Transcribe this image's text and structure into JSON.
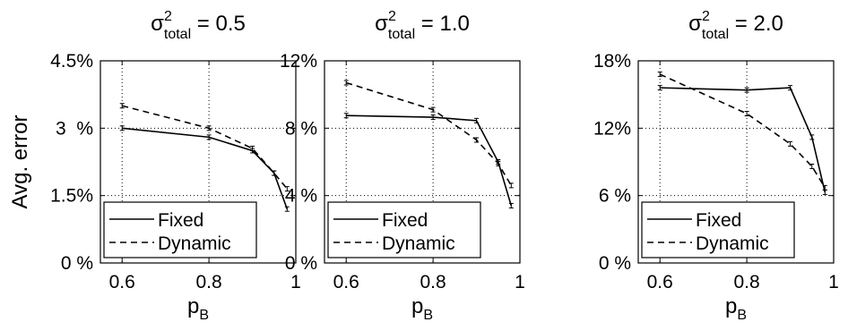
{
  "figure": {
    "ylabel": "Avg. error"
  },
  "chart_data": [
    {
      "type": "line",
      "title": {
        "sym": "σ",
        "sup": "2",
        "sub": "total",
        "rest": " = 0.5"
      },
      "xlabel": {
        "main": "p",
        "sub": "B"
      },
      "xlim": [
        0.55,
        1.0
      ],
      "ylim": [
        0,
        4.5
      ],
      "xticks": [
        {
          "v": 0.6,
          "label": "0.6"
        },
        {
          "v": 0.8,
          "label": "0.8"
        },
        {
          "v": 1.0,
          "label": "1"
        }
      ],
      "yticks": [
        {
          "v": 0,
          "label": "0 %"
        },
        {
          "v": 1.5,
          "label": "1.5%"
        },
        {
          "v": 3,
          "label": "3  %"
        },
        {
          "v": 4.5,
          "label": "4.5%"
        }
      ],
      "grid": true,
      "legend_position": "bottom-left",
      "series": [
        {
          "name": "Fixed",
          "style": "solid",
          "x": [
            0.6,
            0.8,
            0.9,
            0.95,
            0.98
          ],
          "y": [
            3.0,
            2.8,
            2.5,
            2.0,
            1.2
          ]
        },
        {
          "name": "Dynamic",
          "style": "dashed",
          "x": [
            0.6,
            0.8,
            0.9,
            0.95,
            0.98
          ],
          "y": [
            3.5,
            3.0,
            2.55,
            2.0,
            1.65
          ]
        }
      ]
    },
    {
      "type": "line",
      "title": {
        "sym": "σ",
        "sup": "2",
        "sub": "total",
        "rest": " = 1.0"
      },
      "xlabel": {
        "main": "p",
        "sub": "B"
      },
      "xlim": [
        0.55,
        1.0
      ],
      "ylim": [
        0,
        12
      ],
      "xticks": [
        {
          "v": 0.6,
          "label": "0.6"
        },
        {
          "v": 0.8,
          "label": "0.8"
        },
        {
          "v": 1.0,
          "label": "1"
        }
      ],
      "yticks": [
        {
          "v": 0,
          "label": "0 %"
        },
        {
          "v": 4,
          "label": "4 %"
        },
        {
          "v": 8,
          "label": "8 %"
        },
        {
          "v": 12,
          "label": "12%"
        }
      ],
      "grid": true,
      "legend_position": "bottom-left",
      "series": [
        {
          "name": "Fixed",
          "style": "solid",
          "x": [
            0.6,
            0.8,
            0.9,
            0.95,
            0.98
          ],
          "y": [
            8.75,
            8.65,
            8.45,
            6.0,
            3.4
          ]
        },
        {
          "name": "Dynamic",
          "style": "dashed",
          "x": [
            0.6,
            0.8,
            0.9,
            0.95,
            0.98
          ],
          "y": [
            10.7,
            9.1,
            7.3,
            5.9,
            4.6
          ]
        }
      ]
    },
    {
      "type": "line",
      "title": {
        "sym": "σ",
        "sup": "2",
        "sub": "total",
        "rest": " = 2.0"
      },
      "xlabel": {
        "main": "p",
        "sub": "B"
      },
      "xlim": [
        0.55,
        1.0
      ],
      "ylim": [
        0,
        18
      ],
      "xticks": [
        {
          "v": 0.6,
          "label": "0.6"
        },
        {
          "v": 0.8,
          "label": "0.8"
        },
        {
          "v": 1.0,
          "label": "1"
        }
      ],
      "yticks": [
        {
          "v": 0,
          "label": "0 %"
        },
        {
          "v": 6,
          "label": "6 %"
        },
        {
          "v": 12,
          "label": "12%"
        },
        {
          "v": 18,
          "label": "18%"
        }
      ],
      "grid": true,
      "legend_position": "bottom-left",
      "series": [
        {
          "name": "Fixed",
          "style": "solid",
          "x": [
            0.6,
            0.8,
            0.9,
            0.95,
            0.98
          ],
          "y": [
            15.6,
            15.4,
            15.6,
            11.2,
            6.3
          ]
        },
        {
          "name": "Dynamic",
          "style": "dashed",
          "x": [
            0.6,
            0.8,
            0.9,
            0.95,
            0.98
          ],
          "y": [
            16.8,
            13.3,
            10.6,
            8.6,
            6.7
          ]
        }
      ]
    }
  ]
}
